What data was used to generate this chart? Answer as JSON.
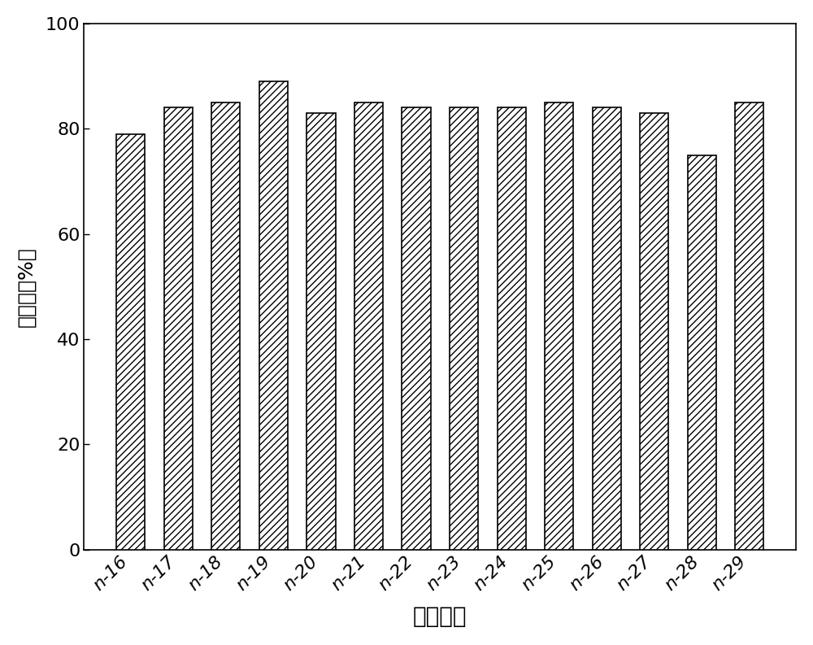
{
  "categories": [
    "n-16",
    "n-17",
    "n-18",
    "n-19",
    "n-20",
    "n-21",
    "n-22",
    "n-23",
    "n-24",
    "n-25",
    "n-26",
    "n-27",
    "n-28",
    "n-29"
  ],
  "values": [
    79,
    84,
    85,
    89,
    83,
    85,
    84,
    84,
    84,
    85,
    84,
    83,
    75,
    85
  ],
  "bar_facecolor": "#ffffff",
  "bar_edgecolor": "#000000",
  "hatch": "////",
  "xlabel": "饱和烷烴",
  "ylabel": "降解率（%）",
  "ylim": [
    0,
    100
  ],
  "yticks": [
    0,
    20,
    40,
    60,
    80,
    100
  ],
  "ytick_labels": [
    "0",
    "20",
    "40",
    "60",
    "80",
    "100"
  ],
  "background_color": "#ffffff",
  "bar_width": 0.6,
  "xlabel_fontsize": 20,
  "ylabel_fontsize": 18,
  "tick_fontsize": 16,
  "linewidth": 1.2
}
